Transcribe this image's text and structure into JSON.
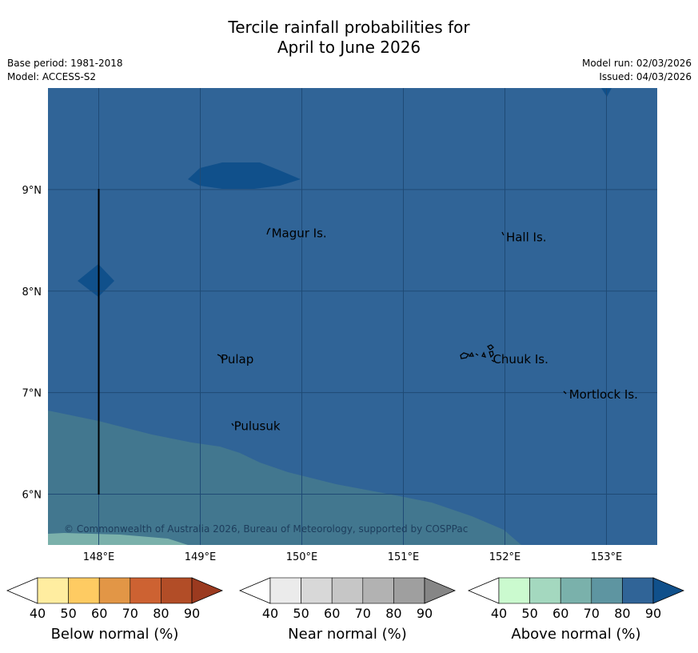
{
  "title": {
    "line1": "Tercile rainfall probabilities for",
    "line2": "April to June 2026"
  },
  "info": {
    "base_period": "Base period: 1981-2018",
    "model": "Model: ACCESS-S2",
    "model_run": "Model run: 02/03/2026",
    "issued": "Issued: 04/03/2026"
  },
  "map": {
    "lon_range": [
      147.5,
      153.5
    ],
    "lat_range": [
      5.5,
      10.0
    ],
    "lon_ticks": [
      "148°E",
      "149°E",
      "150°E",
      "151°E",
      "152°E",
      "153°E"
    ],
    "lat_ticks": [
      "6°N",
      "7°N",
      "8°N",
      "9°N"
    ],
    "copyright": "© Commonwealth of Australia 2026, Bureau of Meteorology, supported by COSPPac",
    "places": [
      {
        "name": "Magur Is.",
        "lon": 149.67,
        "lat": 8.57
      },
      {
        "name": "Hall Is.",
        "lon": 151.98,
        "lat": 8.53
      },
      {
        "name": "Pulap",
        "lon": 149.17,
        "lat": 7.33
      },
      {
        "name": "Chuuk Is.",
        "lon": 151.85,
        "lat": 7.33
      },
      {
        "name": "Mortlock Is.",
        "lon": 152.6,
        "lat": 6.98
      },
      {
        "name": "Pulusuk",
        "lon": 149.3,
        "lat": 6.67
      }
    ],
    "fill_colors": {
      "above_80": "#306497",
      "above_90": "#10508b",
      "above_70": "#42778f",
      "above_60": "#7bb1ab"
    }
  },
  "colorbars": [
    {
      "label": "Below normal (%)",
      "ticks": [
        "40",
        "50",
        "60",
        "70",
        "80",
        "90"
      ],
      "colors": [
        "#ffffff",
        "#ffeda0",
        "#fecb62",
        "#e29646",
        "#cd6232",
        "#b24d27",
        "#9b3a1f"
      ]
    },
    {
      "label": "Near normal (%)",
      "ticks": [
        "40",
        "50",
        "60",
        "70",
        "80",
        "90"
      ],
      "colors": [
        "#ffffff",
        "#ebebeb",
        "#d8d8d8",
        "#c6c6c6",
        "#b2b2b2",
        "#9f9f9f",
        "#868686"
      ]
    },
    {
      "label": "Above normal (%)",
      "ticks": [
        "40",
        "50",
        "60",
        "70",
        "80",
        "90"
      ],
      "colors": [
        "#ffffff",
        "#cbfacf",
        "#a4d8bf",
        "#7ab1ab",
        "#5e95a1",
        "#306497",
        "#10508b"
      ]
    }
  ]
}
